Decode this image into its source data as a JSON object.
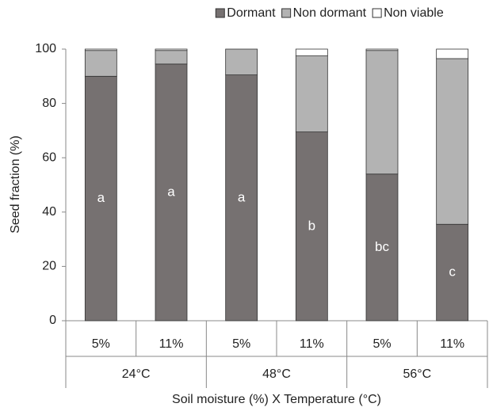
{
  "chart_data": {
    "type": "stacked_bar",
    "categories": [
      "5%",
      "11%",
      "5%",
      "11%",
      "5%",
      "11%"
    ],
    "groups": [
      "24°C",
      "48°C",
      "56°C"
    ],
    "series": [
      {
        "name": "Dormant",
        "color": "#767171",
        "values": [
          90,
          94.5,
          90.5,
          69.5,
          54,
          35.5
        ]
      },
      {
        "name": "Non dormant",
        "color": "#b3b3b3",
        "values": [
          9.5,
          5,
          9.5,
          28,
          45.5,
          61
        ]
      },
      {
        "name": "Non viable",
        "color": "#ffffff",
        "values": [
          0.5,
          0.5,
          0,
          2.5,
          0.5,
          3.5
        ]
      }
    ],
    "annotations": [
      "a",
      "a",
      "a",
      "b",
      "bc",
      "c"
    ],
    "ylabel": "Seed fraction (%)",
    "xlabel": "Soil moisture (%) X Temperature (°C)",
    "ylim": [
      0,
      100
    ],
    "yticks": [
      0,
      20,
      40,
      60,
      80,
      100
    ],
    "legend": "top"
  }
}
